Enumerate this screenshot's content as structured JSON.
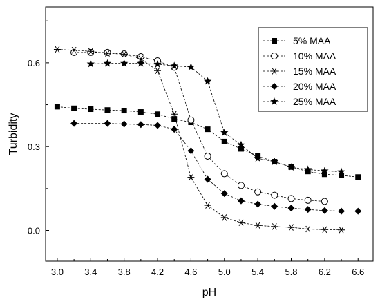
{
  "chart_data": {
    "type": "line",
    "xlabel": "pH",
    "ylabel": "Turbidity",
    "xlim": [
      2.86,
      6.78
    ],
    "ylim": [
      -0.11,
      0.8
    ],
    "xticks": [
      "3.0",
      "3.4",
      "3.8",
      "4.2",
      "4.6",
      "5.0",
      "5.4",
      "5.8",
      "6.2",
      "6.6"
    ],
    "yticks": [
      "0.0",
      "0.3",
      "0.6"
    ],
    "legend_position": "top-right",
    "grid": false,
    "series": [
      {
        "name": "5% MAA",
        "marker": "filled-square",
        "x": [
          3.0,
          3.2,
          3.4,
          3.6,
          3.8,
          4.0,
          4.2,
          4.4,
          4.6,
          4.8,
          5.0,
          5.2,
          5.4,
          5.6,
          5.8,
          6.0,
          6.2,
          6.4,
          6.6
        ],
        "y": [
          0.443,
          0.437,
          0.434,
          0.431,
          0.429,
          0.424,
          0.416,
          0.399,
          0.387,
          0.362,
          0.318,
          0.292,
          0.266,
          0.246,
          0.227,
          0.211,
          0.201,
          0.197,
          0.191
        ]
      },
      {
        "name": "10% MAA",
        "marker": "open-circle",
        "x": [
          3.2,
          3.4,
          3.6,
          3.8,
          4.0,
          4.2,
          4.4,
          4.6,
          4.8,
          5.0,
          5.2,
          5.4,
          5.6,
          5.8,
          6.0,
          6.2
        ],
        "y": [
          0.637,
          0.637,
          0.637,
          0.632,
          0.622,
          0.607,
          0.584,
          0.395,
          0.266,
          0.203,
          0.161,
          0.138,
          0.126,
          0.114,
          0.108,
          0.104
        ]
      },
      {
        "name": "15% MAA",
        "marker": "asterisk",
        "x": [
          3.0,
          3.2,
          3.4,
          3.6,
          3.8,
          4.0,
          4.2,
          4.4,
          4.6,
          4.8,
          5.0,
          5.2,
          5.4,
          5.6,
          5.8,
          6.0,
          6.2,
          6.4
        ],
        "y": [
          0.648,
          0.645,
          0.641,
          0.634,
          0.631,
          0.614,
          0.572,
          0.416,
          0.19,
          0.09,
          0.046,
          0.028,
          0.018,
          0.014,
          0.011,
          0.005,
          0.003,
          0.002
        ]
      },
      {
        "name": "20% MAA",
        "marker": "filled-diamond",
        "x": [
          3.2,
          3.6,
          3.8,
          4.0,
          4.2,
          4.4,
          4.6,
          4.8,
          5.0,
          5.2,
          5.4,
          5.6,
          5.8,
          6.0,
          6.2,
          6.4,
          6.6
        ],
        "y": [
          0.383,
          0.383,
          0.381,
          0.379,
          0.376,
          0.362,
          0.285,
          0.183,
          0.132,
          0.106,
          0.094,
          0.086,
          0.08,
          0.075,
          0.071,
          0.069,
          0.069
        ]
      },
      {
        "name": "25% MAA",
        "marker": "filled-star",
        "x": [
          3.4,
          3.6,
          3.8,
          4.0,
          4.2,
          4.4,
          4.6,
          4.8,
          5.0,
          5.2,
          5.4,
          5.6,
          5.8,
          6.0,
          6.2,
          6.4
        ],
        "y": [
          0.596,
          0.598,
          0.598,
          0.598,
          0.595,
          0.589,
          0.585,
          0.534,
          0.35,
          0.306,
          0.258,
          0.246,
          0.226,
          0.218,
          0.213,
          0.21
        ]
      }
    ]
  }
}
